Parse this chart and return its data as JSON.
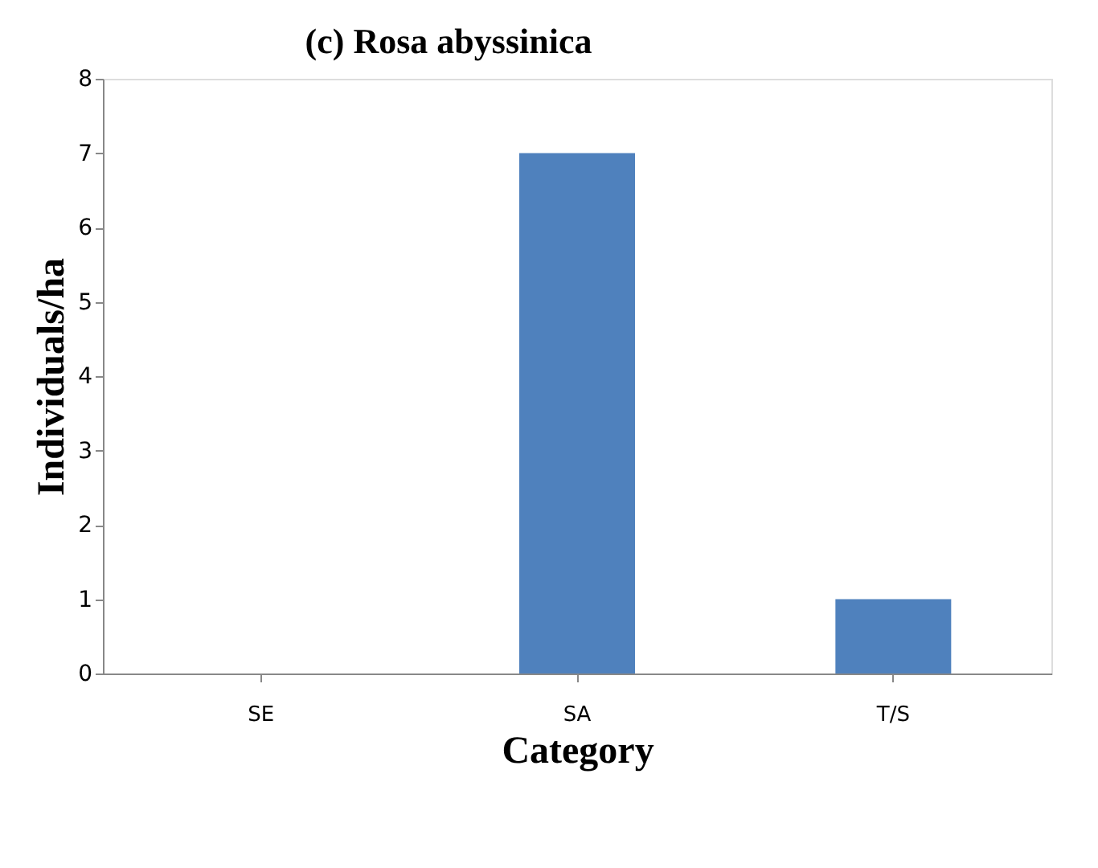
{
  "chart_data": {
    "type": "bar",
    "title": "(c) Rosa abyssinica",
    "xlabel": "Category",
    "ylabel": "Individuals/ha",
    "categories": [
      "SE",
      "SA",
      "T/S"
    ],
    "values": [
      0,
      7,
      1
    ],
    "color": "#4f81bd",
    "ylim": [
      0,
      8
    ],
    "yticks": [
      0,
      1,
      2,
      3,
      4,
      5,
      6,
      7,
      8
    ],
    "grid": false
  }
}
